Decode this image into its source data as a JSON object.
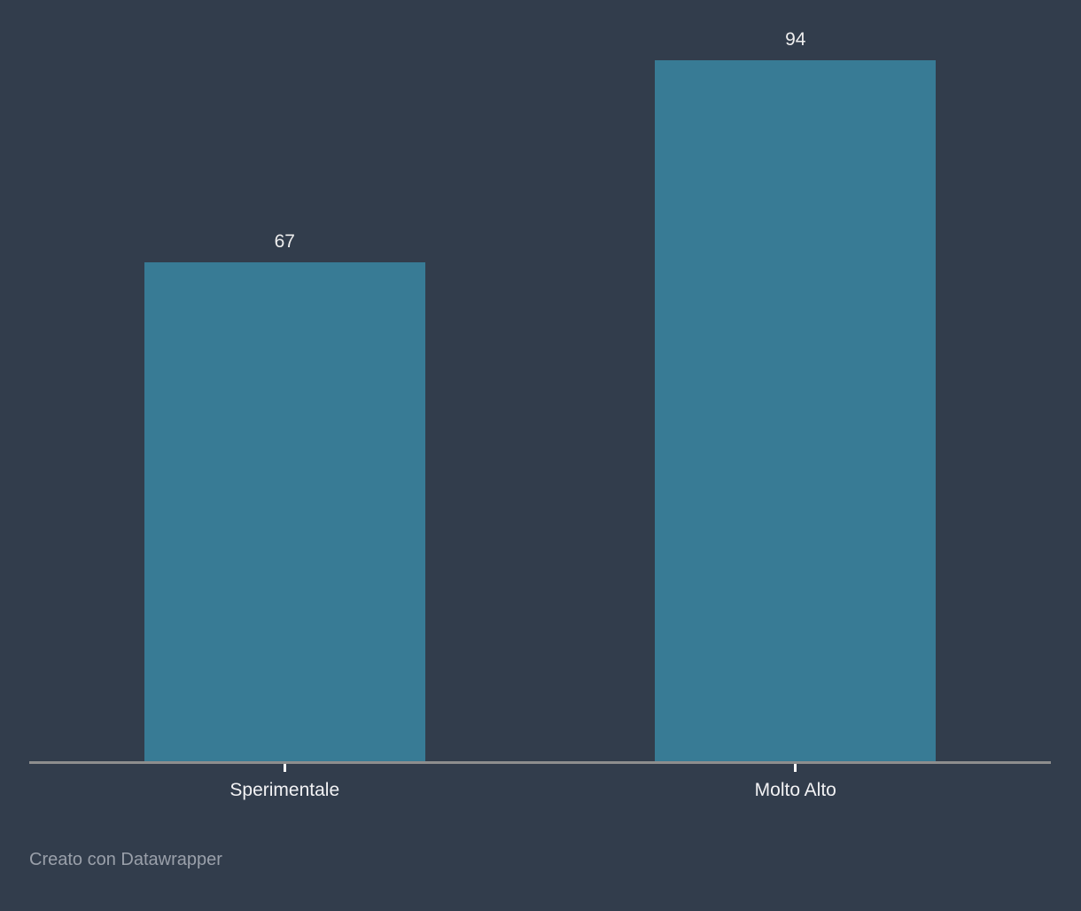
{
  "chart_data": {
    "type": "bar",
    "title": "",
    "xlabel": "",
    "ylabel": "",
    "categories": [
      "Sperimentale",
      "Molto Alto"
    ],
    "values": [
      67,
      94
    ],
    "value_labels": [
      "67",
      "94"
    ],
    "ylim": [
      0,
      94
    ],
    "grid": false,
    "legend": "none",
    "orientation": "vertical"
  },
  "style": {
    "background_color": "#323d4c",
    "bar_color": "#387b95",
    "axis_line_color": "#8e8e8e",
    "tick_color": "#ffffff",
    "value_label_color": "#eeeeee",
    "category_label_color": "#f2f2f4",
    "footer_color": "#9aa0aa"
  },
  "footer": {
    "credit": "Creato con Datawrapper"
  }
}
